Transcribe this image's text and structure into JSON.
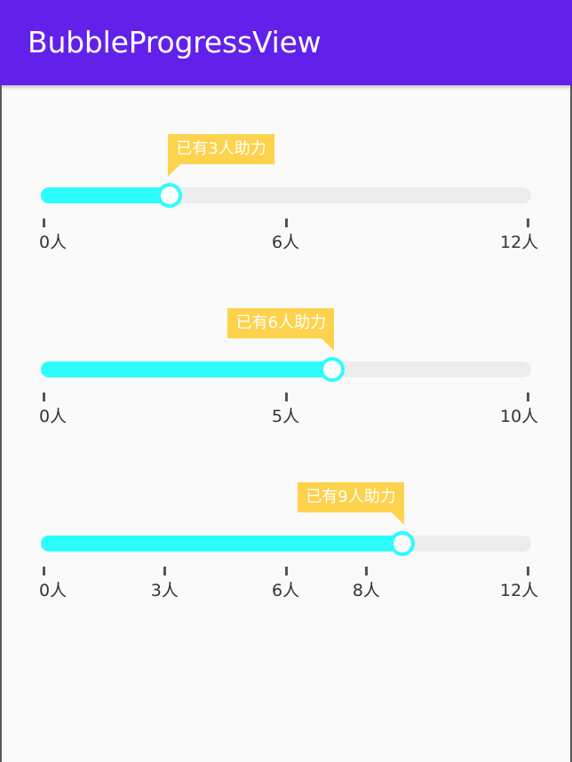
{
  "app": {
    "title": "BubbleProgressView"
  },
  "colors": {
    "app_bar": "#6221ea",
    "progress_fill": "#2cfcfc",
    "track": "#ececec",
    "bubble": "#fdd24c",
    "bubble_text": "#ffffff",
    "tick_label": "#333333"
  },
  "progress_views": [
    {
      "bubble_text": "已有3人助力",
      "value": 3,
      "max": 12,
      "ticks": [
        {
          "value": 0,
          "label": "0人"
        },
        {
          "value": 6,
          "label": "6人"
        },
        {
          "value": 12,
          "label": "12人"
        }
      ]
    },
    {
      "bubble_text": "已有6人助力",
      "value": 6,
      "max": 10,
      "ticks": [
        {
          "value": 0,
          "label": "0人"
        },
        {
          "value": 5,
          "label": "5人"
        },
        {
          "value": 10,
          "label": "10人"
        }
      ]
    },
    {
      "bubble_text": "已有9人助力",
      "value": 9,
      "max": 12,
      "ticks": [
        {
          "value": 0,
          "label": "0人"
        },
        {
          "value": 3,
          "label": "3人"
        },
        {
          "value": 6,
          "label": "6人"
        },
        {
          "value": 8,
          "label": "8人"
        },
        {
          "value": 12,
          "label": "12人"
        }
      ]
    }
  ]
}
